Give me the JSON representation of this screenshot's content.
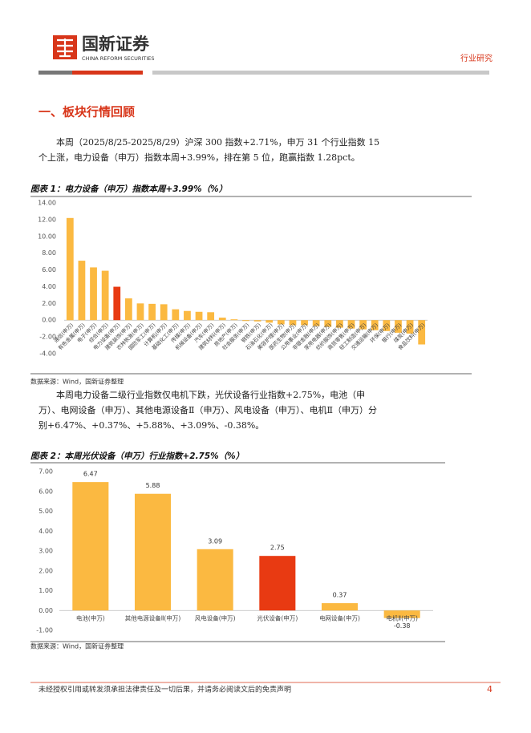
{
  "header": {
    "brand": "国新证券",
    "brand_en": "CHINA REFORM SECURITIES",
    "category": "行业研究"
  },
  "section_title": "一、板块行情回顾",
  "paragraphs": [
    "本周（2025/8/25-2025/8/29）沪深 300 指数+2.71%，申万 31 个行业指数 15 个上涨，电力设备（申万）指数本周+3.99%，排在第 5 位，跑赢指数 1.28pct。",
    "本周电力设备二级行业指数仅电机下跌，光伏设备行业指数+2.75%，电池（申万）、电网设备（申万）、其他电源设备Ⅱ（申万）、风电设备（申万）、电机Ⅱ（申万）分别+6.47%、+0.37%、+5.88%、+3.09%、-0.38%。"
  ],
  "chart_data": [
    {
      "type": "bar",
      "title": "图表 1：电力设备（申万）指数本周+3.99%（%）",
      "categories": [
        "通信(申万)",
        "有色金属(申万)",
        "电子(申万)",
        "综合(申万)",
        "电力设备(申万)",
        "建筑装饰(申万)",
        "农林牧渔(申万)",
        "国防军工(申万)",
        "计算机(申万)",
        "基础化工(申万)",
        "传媒(申万)",
        "机械设备(申万)",
        "汽车(申万)",
        "建筑材料(申万)",
        "房地产(申万)",
        "社会服务(申万)",
        "钢铁(申万)",
        "石油石化(申万)",
        "美容护理(申万)",
        "医药生物(申万)",
        "公用事业(申万)",
        "非银金融(申万)",
        "家用电器(申万)",
        "纺织服饰(申万)",
        "商贸零售(申万)",
        "轻工制造(申万)",
        "交通运输(申万)",
        "环保(申万)",
        "银行(申万)",
        "煤炭(申万)",
        "食品饮料(申万)"
      ],
      "values": [
        12.2,
        7.1,
        6.3,
        5.9,
        3.99,
        2.6,
        2.0,
        1.95,
        1.9,
        1.3,
        1.1,
        1.0,
        0.95,
        0.3,
        0.1,
        -0.1,
        -0.15,
        -0.3,
        -0.5,
        -0.6,
        -0.6,
        -0.7,
        -0.8,
        -0.9,
        -1.0,
        -1.1,
        -1.2,
        -1.3,
        -1.5,
        -1.6,
        -2.9
      ],
      "colors": [
        "#fbb941",
        "#fbb941",
        "#fbb941",
        "#fbb941",
        "#e83a12",
        "#fbb941",
        "#fbb941",
        "#fbb941",
        "#fbb941",
        "#fbb941",
        "#fbb941",
        "#fbb941",
        "#fbb941",
        "#fbb941",
        "#fbb941",
        "#fbb941",
        "#fbb941",
        "#fbb941",
        "#fbb941",
        "#fbb941",
        "#fbb941",
        "#fbb941",
        "#fbb941",
        "#fbb941",
        "#fbb941",
        "#fbb941",
        "#fbb941",
        "#fbb941",
        "#fbb941",
        "#fbb941",
        "#fbb941"
      ],
      "ylim": [
        -4,
        14
      ],
      "yticks": [
        {
          "value": -4,
          "label": "-4.00"
        },
        {
          "value": -2,
          "label": "-2.00"
        },
        {
          "value": 0,
          "label": "0.00"
        },
        {
          "value": 2,
          "label": "2.00"
        },
        {
          "value": 4,
          "label": "4.00"
        },
        {
          "value": 6,
          "label": "6.00"
        },
        {
          "value": 8,
          "label": "8.00"
        },
        {
          "value": 10,
          "label": "10.00"
        },
        {
          "value": 12,
          "label": "12.00"
        },
        {
          "value": 14,
          "label": "14.00"
        }
      ],
      "source": "数据来源：Wind，国新证券整理"
    },
    {
      "type": "bar",
      "title": "图表 2：本周光伏设备（申万）行业指数+2.75%（%）",
      "categories": [
        "电池(申万)",
        "其他电源设备Ⅱ(申万)",
        "风电设备(申万)",
        "光伏设备(申万)",
        "电网设备(申万)",
        "电机Ⅱ(申万)"
      ],
      "values": [
        6.47,
        5.88,
        3.09,
        2.75,
        0.37,
        -0.38
      ],
      "colors": [
        "#fbb941",
        "#fbb941",
        "#fbb941",
        "#e83a12",
        "#fbb941",
        "#fbb941"
      ],
      "ylim": [
        -1,
        7
      ],
      "yticks": [
        {
          "value": -1,
          "label": "-1.00"
        },
        {
          "value": 0,
          "label": "0.00"
        },
        {
          "value": 1,
          "label": "1.00"
        },
        {
          "value": 2,
          "label": "2.00"
        },
        {
          "value": 3,
          "label": "3.00"
        },
        {
          "value": 4,
          "label": "4.00"
        },
        {
          "value": 5,
          "label": "5.00"
        },
        {
          "value": 6,
          "label": "6.00"
        },
        {
          "value": 7,
          "label": "7.00"
        }
      ],
      "source": "数据来源：Wind，国新证券整理"
    }
  ],
  "footer": {
    "disclaimer": "未经授权引用或转发须承担法律责任及一切后果，并请务必阅读文后的免责声明",
    "page": "4"
  }
}
